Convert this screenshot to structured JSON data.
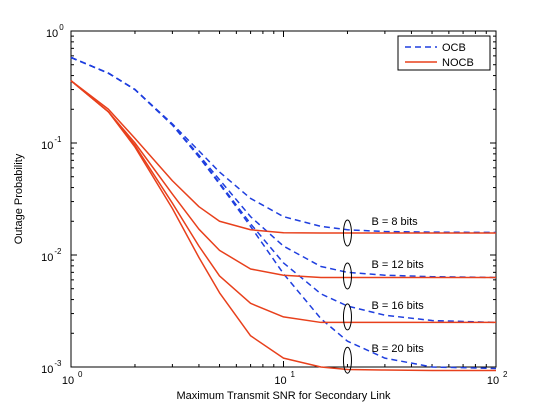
{
  "chart_data": {
    "type": "line",
    "x_scale": "log",
    "y_scale": "log",
    "xlim": [
      1,
      100
    ],
    "ylim": [
      0.001,
      1
    ],
    "xlabel": "Maximum Transmit SNR for Secondary Link",
    "ylabel": "Outage Probability",
    "x_ticks": [
      {
        "value": 1,
        "base": "10",
        "exp": "0"
      },
      {
        "value": 10,
        "base": "10",
        "exp": "1"
      },
      {
        "value": 100,
        "base": "10",
        "exp": "2"
      }
    ],
    "y_ticks": [
      {
        "value": 0.001,
        "base": "10",
        "exp": "-3"
      },
      {
        "value": 0.01,
        "base": "10",
        "exp": "-2"
      },
      {
        "value": 0.1,
        "base": "10",
        "exp": "-1"
      },
      {
        "value": 1,
        "base": "10",
        "exp": "0"
      }
    ],
    "legend": {
      "position": "top-right",
      "entries": [
        {
          "name": "OCB",
          "style": "dashed",
          "color": "#1f3fdf"
        },
        {
          "name": "NOCB",
          "style": "solid",
          "color": "#e8401c"
        }
      ]
    },
    "series": [
      {
        "name": "OCB",
        "label": "B = 8 bits",
        "x": [
          1,
          1.5,
          2,
          3,
          4,
          5,
          7,
          10,
          15,
          20,
          30,
          50,
          100
        ],
        "y": [
          0.58,
          0.42,
          0.3,
          0.148,
          0.085,
          0.055,
          0.032,
          0.022,
          0.018,
          0.0168,
          0.0162,
          0.016,
          0.0159
        ]
      },
      {
        "name": "OCB",
        "label": "B = 12 bits",
        "x": [
          1,
          1.5,
          2,
          3,
          4,
          5,
          7,
          10,
          15,
          20,
          30,
          50,
          100
        ],
        "y": [
          0.58,
          0.42,
          0.3,
          0.145,
          0.078,
          0.047,
          0.022,
          0.012,
          0.0079,
          0.007,
          0.0066,
          0.0064,
          0.0063
        ]
      },
      {
        "name": "OCB",
        "label": "B = 16 bits",
        "x": [
          1,
          1.5,
          2,
          3,
          4,
          5,
          7,
          10,
          15,
          20,
          30,
          50,
          100
        ],
        "y": [
          0.58,
          0.42,
          0.3,
          0.145,
          0.076,
          0.044,
          0.019,
          0.0085,
          0.0045,
          0.0035,
          0.0029,
          0.0026,
          0.0025
        ]
      },
      {
        "name": "OCB",
        "label": "B = 20 bits",
        "x": [
          1,
          1.5,
          2,
          3,
          4,
          5,
          7,
          10,
          15,
          20,
          30,
          50,
          100
        ],
        "y": [
          0.58,
          0.42,
          0.3,
          0.145,
          0.075,
          0.043,
          0.018,
          0.0068,
          0.0027,
          0.0017,
          0.0012,
          0.001,
          0.00097
        ]
      },
      {
        "name": "NOCB",
        "label": "B = 8 bits",
        "x": [
          1,
          1.5,
          2,
          3,
          4,
          5,
          7,
          10,
          15,
          20,
          30,
          50,
          100
        ],
        "y": [
          0.36,
          0.2,
          0.11,
          0.046,
          0.027,
          0.02,
          0.0168,
          0.0158,
          0.0157,
          0.0157,
          0.0157,
          0.0157,
          0.0157
        ]
      },
      {
        "name": "NOCB",
        "label": "B = 12 bits",
        "x": [
          1,
          1.5,
          2,
          3,
          4,
          5,
          7,
          10,
          15,
          20,
          30,
          50,
          100
        ],
        "y": [
          0.36,
          0.19,
          0.1,
          0.035,
          0.017,
          0.011,
          0.0075,
          0.0066,
          0.0063,
          0.0063,
          0.0063,
          0.0063,
          0.0063
        ]
      },
      {
        "name": "NOCB",
        "label": "B = 16 bits",
        "x": [
          1,
          1.5,
          2,
          3,
          4,
          5,
          7,
          10,
          15,
          20,
          30,
          50,
          100
        ],
        "y": [
          0.36,
          0.19,
          0.095,
          0.029,
          0.012,
          0.0065,
          0.0037,
          0.0028,
          0.0025,
          0.0025,
          0.0025,
          0.0025,
          0.0025
        ]
      },
      {
        "name": "NOCB",
        "label": "B = 20 bits",
        "x": [
          1,
          1.5,
          2,
          3,
          4,
          5,
          7,
          10,
          15,
          20,
          30,
          50,
          100
        ],
        "y": [
          0.36,
          0.19,
          0.092,
          0.026,
          0.0095,
          0.0046,
          0.0019,
          0.0012,
          0.001,
          0.00095,
          0.00094,
          0.00093,
          0.00093
        ]
      }
    ],
    "annotations": [
      {
        "text": "B = 8 bits",
        "x": 20,
        "y": 0.0157
      },
      {
        "text": "B = 12 bits",
        "x": 20,
        "y": 0.0065
      },
      {
        "text": "B = 16 bits",
        "x": 20,
        "y": 0.0028
      },
      {
        "text": "B = 20 bits",
        "x": 20,
        "y": 0.00115
      }
    ]
  }
}
